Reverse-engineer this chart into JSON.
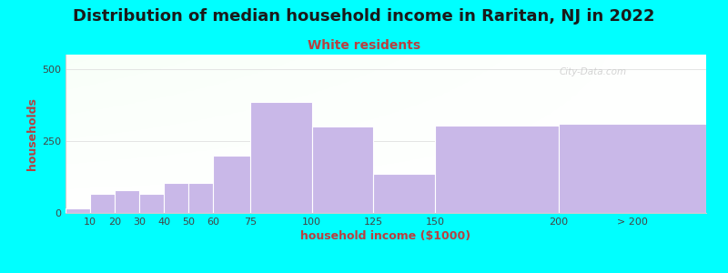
{
  "title": "Distribution of median household income in Raritan, NJ in 2022",
  "subtitle": "White residents",
  "xlabel": "household income ($1000)",
  "ylabel": "households",
  "background_color": "#00FFFF",
  "bar_color": "#C9B8E8",
  "categories": [
    "10",
    "20",
    "30",
    "40",
    "50",
    "60",
    "75",
    "100",
    "125",
    "150",
    "200",
    "> 200"
  ],
  "values": [
    15,
    65,
    80,
    65,
    105,
    105,
    200,
    385,
    300,
    135,
    305,
    310
  ],
  "bar_lefts": [
    0,
    10,
    20,
    30,
    40,
    50,
    60,
    75,
    100,
    125,
    150,
    200
  ],
  "bar_widths": [
    10,
    10,
    10,
    10,
    10,
    10,
    15,
    25,
    25,
    25,
    50,
    60
  ],
  "xlim": [
    0,
    260
  ],
  "xtick_positions": [
    10,
    20,
    30,
    40,
    50,
    60,
    75,
    100,
    125,
    150,
    200,
    230
  ],
  "xtick_labels": [
    "10",
    "20",
    "30",
    "40",
    "50",
    "60",
    "75",
    "100",
    "125",
    "150",
    "200",
    "> 200"
  ],
  "ylim": [
    0,
    550
  ],
  "yticks": [
    0,
    250,
    500
  ],
  "title_fontsize": 13,
  "subtitle_fontsize": 10,
  "axis_label_fontsize": 9,
  "tick_fontsize": 8,
  "title_color": "#1a1a1a",
  "subtitle_color": "#b84040",
  "axis_label_color": "#b84040",
  "tick_color": "#444444",
  "watermark": "City-Data.com"
}
